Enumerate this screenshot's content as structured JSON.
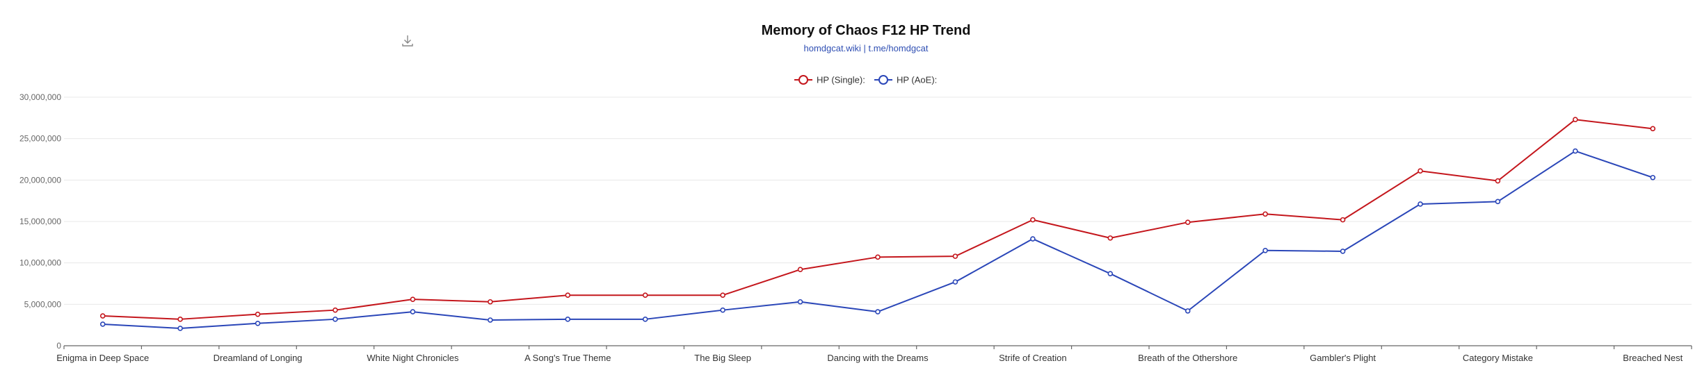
{
  "chart_data": {
    "type": "line",
    "title": "Memory of Chaos F12 HP Trend",
    "subtitle": "homdgcat.wiki | t.me/homdgcat",
    "toolbox_icon": "download-icon",
    "legend_position": "top-center",
    "grid": true,
    "ylim": [
      0,
      30000000
    ],
    "y_ticks": [
      "0",
      "5,000,000",
      "10,000,000",
      "15,000,000",
      "20,000,000",
      "25,000,000",
      "30,000,000"
    ],
    "y_tick_values": [
      0,
      5000000,
      10000000,
      15000000,
      20000000,
      25000000,
      30000000
    ],
    "x_labels_shown": [
      "Enigma in Deep Space",
      "Dreamland of Longing",
      "White Night Chronicles",
      "A Song's True Theme",
      "The Big Sleep",
      "Dancing with the Dreams",
      "Strife of Creation",
      "Breath of the Othershore",
      "Gambler's Plight",
      "Category Mistake",
      "Breached Nest"
    ],
    "series": [
      {
        "name": "HP (Single):",
        "color": "#c4161c",
        "values": [
          3600000,
          3200000,
          3800000,
          4300000,
          5600000,
          5300000,
          6100000,
          6100000,
          6100000,
          9200000,
          10700000,
          10800000,
          15200000,
          13000000,
          14900000,
          15900000,
          15200000,
          21100000,
          19900000,
          27300000,
          26200000
        ]
      },
      {
        "name": "HP (AoE):",
        "color": "#2a46b8",
        "values": [
          2600000,
          2100000,
          2700000,
          3200000,
          4100000,
          3100000,
          3200000,
          3200000,
          4300000,
          5300000,
          4100000,
          7700000,
          12900000,
          8700000,
          4200000,
          11500000,
          11400000,
          17100000,
          17400000,
          23500000,
          20300000
        ]
      }
    ]
  }
}
